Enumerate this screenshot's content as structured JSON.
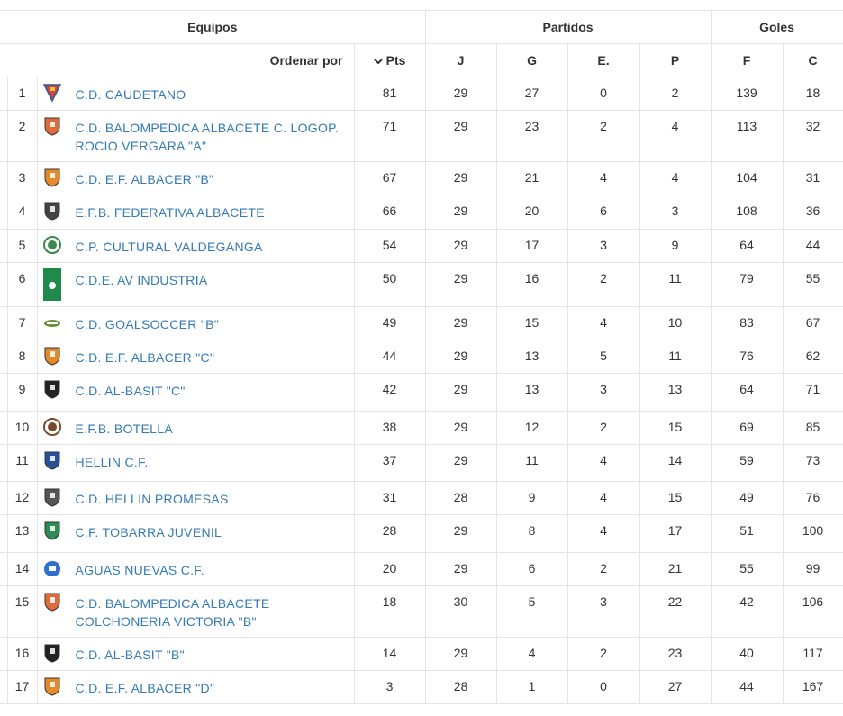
{
  "header": {
    "equipos": "Equipos",
    "partidos": "Partidos",
    "goles": "Goles",
    "ordenar_por": "Ordenar por",
    "pts": "Pts",
    "j": "J",
    "g": "G",
    "e": "E.",
    "p": "P",
    "f": "F",
    "c": "C"
  },
  "rows": [
    {
      "pos": "1",
      "team": "C.D. CAUDETANO",
      "pts": "81",
      "j": "29",
      "g": "27",
      "e": "0",
      "p": "2",
      "f": "139",
      "c": "18",
      "crest": "caudetano-crest-icon",
      "color": "#d1463a"
    },
    {
      "pos": "2",
      "team": "C.D. BALOMPEDICA ALBACETE C. LOGOP. ROCIO VERGARA \"A\"",
      "pts": "71",
      "j": "29",
      "g": "23",
      "e": "2",
      "p": "4",
      "f": "113",
      "c": "32",
      "crest": "balompedica-crest-icon",
      "color": "#e06a3b"
    },
    {
      "pos": "3",
      "team": "C.D. E.F. ALBACER \"B\"",
      "pts": "67",
      "j": "29",
      "g": "21",
      "e": "4",
      "p": "4",
      "f": "104",
      "c": "31",
      "crest": "albacer-crest-icon",
      "color": "#e58a2b"
    },
    {
      "pos": "4",
      "team": "E.F.B. FEDERATIVA ALBACETE",
      "pts": "66",
      "j": "29",
      "g": "20",
      "e": "6",
      "p": "3",
      "f": "108",
      "c": "36",
      "crest": "federativa-crest-icon",
      "color": "#444444"
    },
    {
      "pos": "5",
      "team": "C.P. CULTURAL VALDEGANGA",
      "pts": "54",
      "j": "29",
      "g": "17",
      "e": "3",
      "p": "9",
      "f": "64",
      "c": "44",
      "crest": "valdeganga-crest-icon",
      "color": "#3a8a4a"
    },
    {
      "pos": "6",
      "team": "C.D.E. AV INDUSTRIA",
      "pts": "50",
      "j": "29",
      "g": "16",
      "e": "2",
      "p": "11",
      "f": "79",
      "c": "55",
      "crest": "industria-crest-icon",
      "color": "#1f8a4c"
    },
    {
      "pos": "7",
      "team": "C.D. GOALSOCCER \"B\"",
      "pts": "49",
      "j": "29",
      "g": "15",
      "e": "4",
      "p": "10",
      "f": "83",
      "c": "67",
      "crest": "goalsoccer-crest-icon",
      "color": "#6b8f3a"
    },
    {
      "pos": "8",
      "team": "C.D. E.F. ALBACER \"C\"",
      "pts": "44",
      "j": "29",
      "g": "13",
      "e": "5",
      "p": "11",
      "f": "76",
      "c": "62",
      "crest": "albacer-crest-icon",
      "color": "#e58a2b"
    },
    {
      "pos": "9",
      "team": "C.D. AL-BASIT \"C\"",
      "pts": "42",
      "j": "29",
      "g": "13",
      "e": "3",
      "p": "13",
      "f": "64",
      "c": "71",
      "crest": "albasit-crest-icon",
      "color": "#222222"
    },
    {
      "pos": "10",
      "team": "E.F.B. BOTELLA",
      "pts": "38",
      "j": "29",
      "g": "12",
      "e": "2",
      "p": "15",
      "f": "69",
      "c": "85",
      "crest": "botella-crest-icon",
      "color": "#7a4a2a"
    },
    {
      "pos": "11",
      "team": "HELLIN C.F.",
      "pts": "37",
      "j": "29",
      "g": "11",
      "e": "4",
      "p": "14",
      "f": "59",
      "c": "73",
      "crest": "hellin-crest-icon",
      "color": "#2a4f9a"
    },
    {
      "pos": "12",
      "team": "C.D. HELLIN PROMESAS",
      "pts": "31",
      "j": "28",
      "g": "9",
      "e": "4",
      "p": "15",
      "f": "49",
      "c": "76",
      "crest": "hellin-promesas-crest-icon",
      "color": "#555555"
    },
    {
      "pos": "13",
      "team": "C.F. TOBARRA JUVENIL",
      "pts": "28",
      "j": "29",
      "g": "8",
      "e": "4",
      "p": "17",
      "f": "51",
      "c": "100",
      "crest": "tobarra-crest-icon",
      "color": "#2e8b57"
    },
    {
      "pos": "14",
      "team": "AGUAS NUEVAS C.F.",
      "pts": "20",
      "j": "29",
      "g": "6",
      "e": "2",
      "p": "21",
      "f": "55",
      "c": "99",
      "crest": "aguas-nuevas-crest-icon",
      "color": "#2f6fd0"
    },
    {
      "pos": "15",
      "team": "C.D. BALOMPEDICA ALBACETE COLCHONERIA VICTORIA \"B\"",
      "pts": "18",
      "j": "30",
      "g": "5",
      "e": "3",
      "p": "22",
      "f": "42",
      "c": "106",
      "crest": "balompedica-crest-icon",
      "color": "#e06a3b"
    },
    {
      "pos": "16",
      "team": "C.D. AL-BASIT \"B\"",
      "pts": "14",
      "j": "29",
      "g": "4",
      "e": "2",
      "p": "23",
      "f": "40",
      "c": "117",
      "crest": "albasit-crest-icon",
      "color": "#222222"
    },
    {
      "pos": "17",
      "team": "C.D. E.F. ALBACER \"D\"",
      "pts": "3",
      "j": "28",
      "g": "1",
      "e": "0",
      "p": "27",
      "f": "44",
      "c": "167",
      "crest": "albacer-crest-icon",
      "color": "#e58a2b"
    }
  ]
}
